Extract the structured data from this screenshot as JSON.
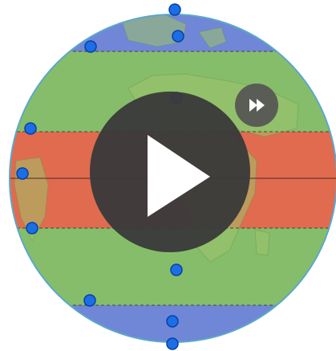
{
  "globe": {
    "zones": [
      {
        "name": "polar",
        "color": "#6f87d6"
      },
      {
        "name": "temperate",
        "color": "#86bd6a"
      },
      {
        "name": "tropical",
        "color": "#e06b4f"
      }
    ],
    "land_color": "#a9c86a",
    "outline_color": "#5ba8c9",
    "handle_fill": "#1b6fe6",
    "handle_stroke": "#0a3fa6"
  },
  "controls": {
    "play": {
      "icon": "play-icon",
      "color": "#3a3a3a"
    },
    "fast_forward": {
      "icon": "fast-forward-icon",
      "color": "#555555"
    }
  }
}
